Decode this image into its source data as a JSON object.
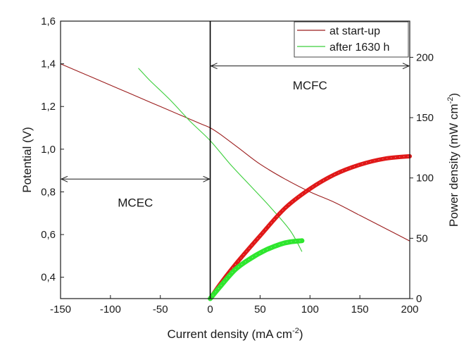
{
  "chart_data": {
    "type": "line",
    "xlabel": "Current density (mA cm",
    "xlabel_sup": "-2",
    "xlabel_end": ")",
    "ylabel": "Potential (V)",
    "y2label": "Power density (mW cm",
    "y2label_sup": "-2",
    "y2label_end": ")",
    "xlim": [
      -150,
      200
    ],
    "ylim": [
      0.3,
      1.6
    ],
    "y2lim": [
      0,
      230
    ],
    "x_ticks": [
      -150,
      -100,
      -50,
      0,
      50,
      100,
      150,
      200
    ],
    "x_tick_labels": [
      "-150",
      "-100",
      "-50",
      "0",
      "50",
      "100",
      "150",
      "200"
    ],
    "y_ticks": [
      0.4,
      0.6,
      0.8,
      1.0,
      1.2,
      1.4,
      1.6
    ],
    "y_tick_labels": [
      "0,4",
      "0,6",
      "0,8",
      "1,0",
      "1,2",
      "1,4",
      "1,6"
    ],
    "y2_ticks": [
      0,
      50,
      100,
      150,
      200
    ],
    "y2_tick_labels": [
      "0",
      "50",
      "100",
      "150",
      "200"
    ],
    "grid": false,
    "legend_position": "top-right",
    "series": [
      {
        "name": "at start-up",
        "color": "#9b1c1c",
        "axis": "left",
        "kind": "polarization",
        "x": [
          -150,
          -120,
          -90,
          -60,
          -30,
          -10,
          0,
          10,
          30,
          50,
          75,
          100,
          125,
          150,
          175,
          200
        ],
        "y": [
          1.4,
          1.34,
          1.28,
          1.22,
          1.16,
          1.12,
          1.1,
          1.07,
          1.0,
          0.93,
          0.86,
          0.8,
          0.75,
          0.69,
          0.63,
          0.57
        ]
      },
      {
        "name": "after 1630 h",
        "color": "#3ccf3c",
        "axis": "left",
        "kind": "polarization",
        "x": [
          -72,
          -60,
          -40,
          -20,
          0,
          20,
          40,
          60,
          80,
          92
        ],
        "y": [
          1.38,
          1.32,
          1.23,
          1.13,
          1.04,
          0.93,
          0.83,
          0.73,
          0.62,
          0.52
        ]
      },
      {
        "color": "#e01818",
        "axis": "right",
        "kind": "power",
        "x": [
          0,
          10,
          25,
          50,
          75,
          100,
          125,
          150,
          175,
          200
        ],
        "y": [
          0,
          12,
          28,
          52,
          75,
          91,
          103,
          111,
          116,
          118
        ]
      },
      {
        "color": "#2ee62e",
        "axis": "right",
        "kind": "power",
        "x": [
          0,
          10,
          25,
          40,
          55,
          70,
          80,
          92
        ],
        "y": [
          0,
          10,
          24,
          33,
          40,
          45,
          47,
          48
        ]
      }
    ],
    "annotations": [
      {
        "text": "MCFC",
        "x": 100,
        "y": 1.3,
        "arrow_from": 0,
        "arrow_to": 200,
        "arrow_y": 1.39
      },
      {
        "text": "MCEC",
        "x": -75,
        "y": 0.75,
        "arrow_from": -150,
        "arrow_to": 0,
        "arrow_y": 0.86
      }
    ]
  }
}
